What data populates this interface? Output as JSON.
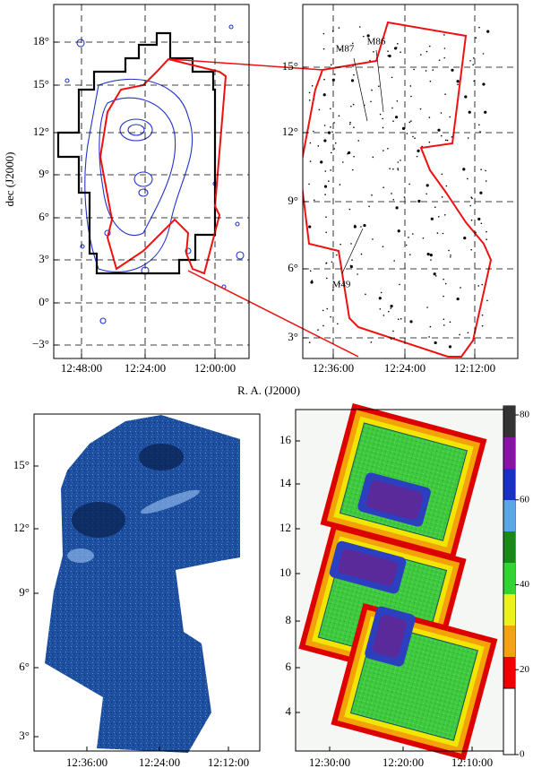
{
  "figure": {
    "xlabel": "R. A. (J2000)",
    "panels": [
      {
        "ylabel": "dec (J2000)",
        "yticks": [
          "18°",
          "15°",
          "12°",
          "9°",
          "6°",
          "3°",
          "0°",
          "−3°"
        ],
        "xticks": [
          "12:48:00",
          "12:24:00",
          "12:00:00"
        ]
      },
      {
        "yticks": [
          "15°",
          "12°",
          "9°",
          "6°",
          "3°"
        ],
        "xticks": [
          "12:36:00",
          "12:24:00",
          "12:12:00"
        ],
        "labels": [
          "M87",
          "M86",
          "M49"
        ]
      },
      {
        "yticks": [
          "15°",
          "12°",
          "9°",
          "6°",
          "3°"
        ],
        "xticks": [
          "12:36:00",
          "12:24:00",
          "12:12:00"
        ]
      },
      {
        "yticks": [
          "16",
          "14",
          "12",
          "10",
          "8",
          "6",
          "4"
        ],
        "xticks": [
          "12:30:00",
          "12:20:00",
          "12:10:00"
        ],
        "colorbar": [
          80,
          60,
          40,
          20,
          0
        ]
      }
    ]
  }
}
